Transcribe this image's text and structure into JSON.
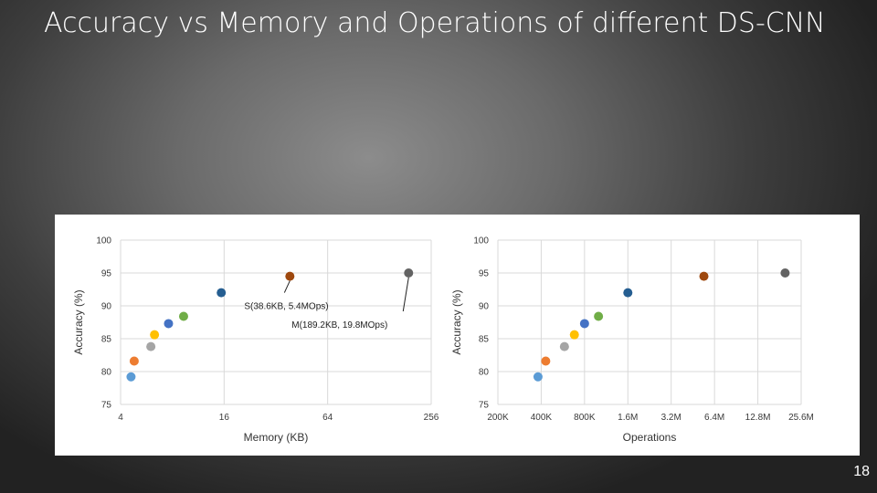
{
  "slide": {
    "title": "Accuracy vs Memory and Operations of different DS-CNN",
    "page_number": "18"
  },
  "colors": {
    "point_colors": [
      "#5b9bd5",
      "#ed7d31",
      "#a5a5a5",
      "#ffc000",
      "#4472c4",
      "#70ad47",
      "#255e91",
      "#9e480e",
      "#636363"
    ]
  },
  "chart_data": [
    {
      "type": "scatter",
      "xscale": "log2",
      "xlabel": "Memory (KB)",
      "ylabel": "Accuracy (%)",
      "xlim": [
        4,
        256
      ],
      "ylim": [
        75,
        100
      ],
      "xticks": [
        4,
        16,
        64,
        256
      ],
      "xtick_labels": [
        "4",
        "16",
        "64",
        "256"
      ],
      "yticks": [
        75,
        80,
        85,
        90,
        95,
        100
      ],
      "grid": true,
      "points": [
        {
          "x": 4.6,
          "y": 79.2
        },
        {
          "x": 4.8,
          "y": 81.6
        },
        {
          "x": 6.0,
          "y": 83.8
        },
        {
          "x": 6.3,
          "y": 85.6
        },
        {
          "x": 7.6,
          "y": 87.3
        },
        {
          "x": 9.3,
          "y": 88.4
        },
        {
          "x": 15.4,
          "y": 92.0
        },
        {
          "x": 38.6,
          "y": 94.5
        },
        {
          "x": 189.2,
          "y": 95.0
        }
      ],
      "annotations": [
        {
          "text": "S(38.6KB, 5.4MOps)",
          "point": 7
        },
        {
          "text": "M(189.2KB, 19.8MOps)",
          "point": 8
        }
      ]
    },
    {
      "type": "scatter",
      "xscale": "log2",
      "xlabel": "Operations",
      "ylabel": "Accuracy (%)",
      "xlim": [
        200000,
        25600000
      ],
      "ylim": [
        75,
        100
      ],
      "xticks": [
        200000,
        400000,
        800000,
        1600000,
        3200000,
        6400000,
        12800000,
        25600000
      ],
      "xtick_labels": [
        "200K",
        "400K",
        "800K",
        "1.6M",
        "3.2M",
        "6.4M",
        "12.8M",
        "25.6M"
      ],
      "yticks": [
        75,
        80,
        85,
        90,
        95,
        100
      ],
      "grid": true,
      "points": [
        {
          "x": 380000,
          "y": 79.2
        },
        {
          "x": 430000,
          "y": 81.6
        },
        {
          "x": 580000,
          "y": 83.8
        },
        {
          "x": 680000,
          "y": 85.6
        },
        {
          "x": 800000,
          "y": 87.3
        },
        {
          "x": 1000000,
          "y": 88.4
        },
        {
          "x": 1600000,
          "y": 92.0
        },
        {
          "x": 5400000,
          "y": 94.5
        },
        {
          "x": 19800000,
          "y": 95.0
        }
      ]
    }
  ]
}
